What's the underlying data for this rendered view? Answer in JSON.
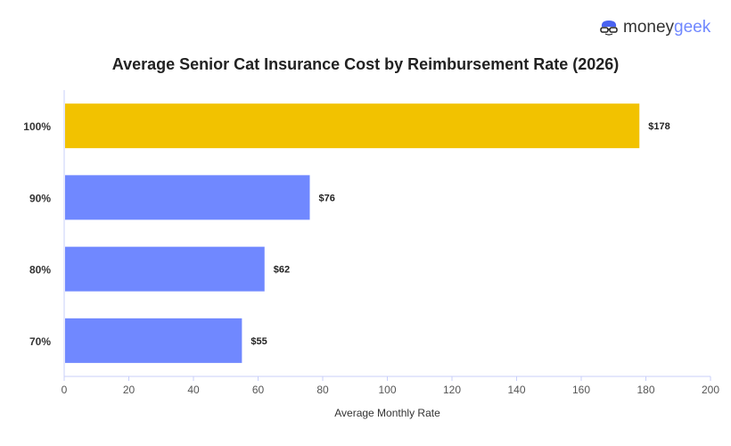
{
  "brand": {
    "part1": "money",
    "part2": "geek"
  },
  "chart_data": {
    "type": "bar",
    "orientation": "horizontal",
    "title": "Average Senior Cat Insurance Cost by Reimbursement Rate (2026)",
    "xlabel": "Average Monthly Rate",
    "ylabel": "",
    "categories": [
      "100%",
      "90%",
      "80%",
      "70%"
    ],
    "values": [
      178,
      76,
      62,
      55
    ],
    "data_labels": [
      "$178",
      "$76",
      "$62",
      "$55"
    ],
    "bar_colors": [
      "#F2C200",
      "#7088FF",
      "#7088FF",
      "#7088FF"
    ],
    "xlim": [
      0,
      200
    ],
    "xticks": [
      0,
      20,
      40,
      60,
      80,
      100,
      120,
      140,
      160,
      180,
      200
    ],
    "grid": false,
    "axis_color": "#C8CFFA"
  }
}
